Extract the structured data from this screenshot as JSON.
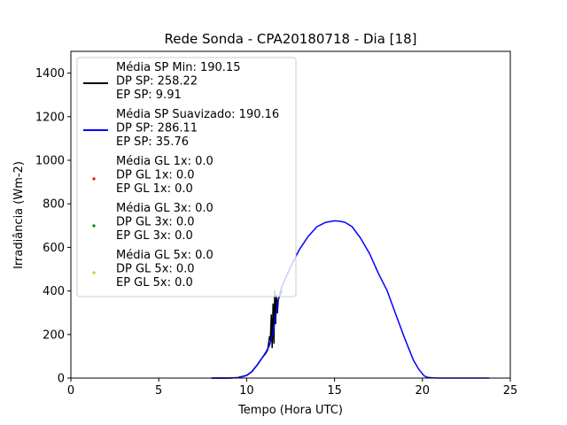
{
  "chart_data": {
    "type": "line",
    "title": "Rede Sonda - CPA20180718 - Dia [18]",
    "xlabel": "Tempo (Hora UTC)",
    "ylabel": "Irradiância (Wm-2)",
    "xlim": [
      0,
      25
    ],
    "ylim": [
      0,
      1500
    ],
    "xticks": [
      "0",
      "5",
      "10",
      "15",
      "20",
      "25"
    ],
    "yticks": [
      "0",
      "200",
      "400",
      "600",
      "800",
      "1000",
      "1200",
      "1400"
    ],
    "grid": false,
    "legend_position": "upper-left",
    "series": [
      {
        "name": "Média SP Min: 190.15\nDP SP: 258.22\nEP SP: 9.91",
        "color": "#000000",
        "kind": "line",
        "x": [
          8.0,
          9.0,
          9.5,
          10.0,
          10.3,
          10.6,
          10.9,
          11.1,
          11.2,
          11.3,
          11.35,
          11.4,
          11.45,
          11.5,
          11.55,
          11.6,
          11.65,
          11.7,
          11.75,
          11.8,
          11.9,
          12.0
        ],
        "y": [
          0,
          0,
          2,
          12,
          30,
          60,
          95,
          115,
          130,
          190,
          175,
          290,
          140,
          340,
          160,
          400,
          250,
          380,
          300,
          360,
          380,
          400
        ]
      },
      {
        "name": "Média SP Suavizado: 190.16\nDP SP: 286.11\nEP SP: 35.76",
        "color": "#0000ff",
        "kind": "line",
        "x": [
          8.0,
          9.0,
          9.5,
          10.0,
          10.3,
          10.6,
          10.9,
          11.1,
          11.3,
          11.5,
          11.8,
          12.0,
          12.5,
          13.0,
          13.5,
          14.0,
          14.5,
          15.0,
          15.3,
          15.6,
          16.0,
          16.5,
          17.0,
          17.5,
          18.0,
          18.5,
          19.0,
          19.5,
          19.8,
          20.0,
          20.1,
          20.3,
          20.6,
          21.0,
          22.0,
          23.0,
          23.8
        ],
        "y": [
          0,
          0,
          2,
          12,
          30,
          60,
          95,
          120,
          150,
          210,
          360,
          420,
          510,
          590,
          650,
          695,
          715,
          722,
          720,
          715,
          695,
          640,
          570,
          480,
          400,
          290,
          180,
          80,
          40,
          20,
          10,
          3,
          1,
          0,
          0,
          0,
          0
        ]
      },
      {
        "name": "Média GL 1x: 0.0\nDP GL 1x: 0.0\nEP GL 1x: 0.0",
        "color": "#ff0000",
        "kind": "scatter",
        "x": [],
        "y": []
      },
      {
        "name": "Média GL 3x: 0.0\nDP GL 3x: 0.0\nEP GL 3x: 0.0",
        "color": "#008000",
        "kind": "scatter",
        "x": [],
        "y": []
      },
      {
        "name": "Média GL 5x: 0.0\nDP GL 5x: 0.0\nEP GL 5x: 0.0",
        "color": "#cccc00",
        "kind": "scatter",
        "x": [],
        "y": []
      }
    ]
  }
}
